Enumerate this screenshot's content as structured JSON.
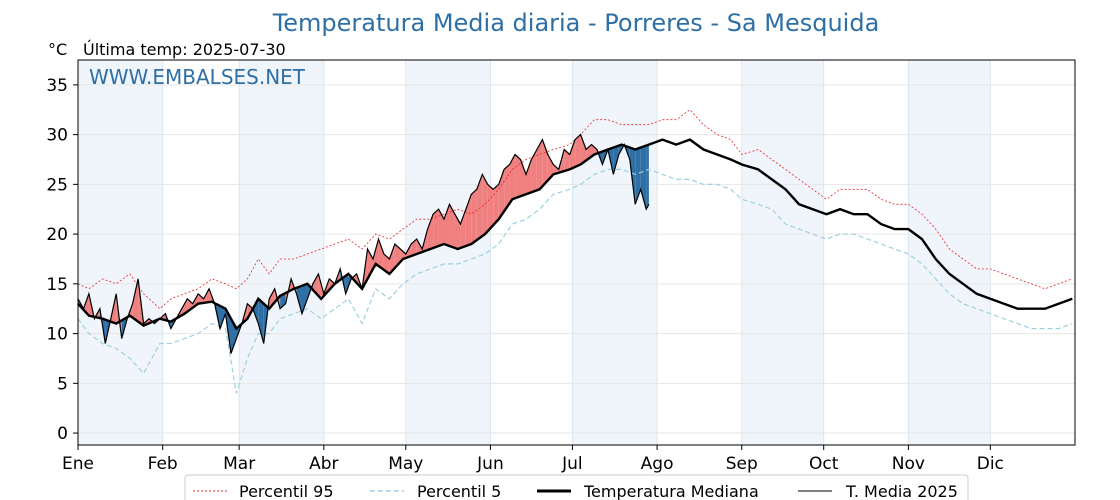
{
  "chart_data": {
    "type": "line",
    "title": "Temperatura Media diaria - Porreres - Sa Mesquida",
    "unit_label": "°C",
    "last_temp_label": "Última temp: 2025-07-30",
    "watermark": "WWW.EMBALSES.NET",
    "ylim": [
      -1.2,
      37.5
    ],
    "yticks": [
      0,
      5,
      10,
      15,
      20,
      25,
      30,
      35
    ],
    "months": [
      "Ene",
      "Feb",
      "Mar",
      "Abr",
      "May",
      "Jun",
      "Jul",
      "Ago",
      "Sep",
      "Oct",
      "Nov",
      "Dic"
    ],
    "month_start_days": [
      1,
      32,
      60,
      91,
      121,
      152,
      182,
      213,
      244,
      274,
      305,
      335
    ],
    "days_in_year": 365,
    "shaded_month_indices": [
      0,
      2,
      4,
      6,
      8,
      10
    ],
    "grid": true,
    "legend_position": "bottom-center",
    "colors": {
      "title": "#2e6fa5",
      "p95": "#e8242a",
      "p5": "#9ed0e0",
      "median": "#000000",
      "mean2025": "#000000",
      "above_fill": "#f08080",
      "below_fill": "#2e6fa5",
      "shade": "#f0f5fb"
    },
    "series": [
      {
        "name": "Percentil 95",
        "key": "p95",
        "style": "dotted-red"
      },
      {
        "name": "Percentil 5",
        "key": "p5",
        "style": "dashed-lightblue"
      },
      {
        "name": "Temperatura Mediana",
        "key": "median",
        "style": "thick-black"
      },
      {
        "name": "T. Media 2025",
        "key": "mean2025",
        "style": "thin-black"
      }
    ],
    "median": {
      "x": [
        1,
        5,
        10,
        15,
        20,
        25,
        31,
        35,
        40,
        45,
        50,
        55,
        59,
        63,
        67,
        71,
        75,
        80,
        85,
        90,
        95,
        100,
        105,
        110,
        115,
        120,
        125,
        130,
        135,
        140,
        145,
        150,
        155,
        160,
        165,
        170,
        175,
        181,
        185,
        190,
        195,
        200,
        205,
        210,
        215,
        220,
        225,
        230,
        235,
        240,
        244,
        250,
        255,
        260,
        265,
        270,
        275,
        280,
        285,
        290,
        295,
        300,
        305,
        310,
        315,
        320,
        325,
        330,
        335,
        340,
        345,
        350,
        355,
        360,
        365
      ],
      "y": [
        13.0,
        11.8,
        11.5,
        11.0,
        11.8,
        10.8,
        11.5,
        11.2,
        12.0,
        13.0,
        13.2,
        12.5,
        10.5,
        11.5,
        13.5,
        12.5,
        13.8,
        14.5,
        15.0,
        13.5,
        15.0,
        16.0,
        14.5,
        17.0,
        16.0,
        17.5,
        18.0,
        18.5,
        19.0,
        18.5,
        19.0,
        20.0,
        21.5,
        23.5,
        24.0,
        24.5,
        26.0,
        26.5,
        27.0,
        28.0,
        28.5,
        29.0,
        28.5,
        29.0,
        29.5,
        29.0,
        29.5,
        28.5,
        28.0,
        27.5,
        27.0,
        26.5,
        25.5,
        24.5,
        23.0,
        22.5,
        22.0,
        22.5,
        22.0,
        22.0,
        21.0,
        20.5,
        20.5,
        19.5,
        17.5,
        16.0,
        15.0,
        14.0,
        13.5,
        13.0,
        12.5,
        12.5,
        12.5,
        13.0,
        13.5
      ]
    },
    "p95": {
      "x": [
        1,
        5,
        10,
        15,
        20,
        25,
        31,
        35,
        40,
        45,
        50,
        55,
        59,
        63,
        67,
        71,
        75,
        80,
        85,
        90,
        95,
        100,
        105,
        110,
        115,
        120,
        125,
        130,
        135,
        140,
        145,
        150,
        155,
        160,
        165,
        170,
        175,
        181,
        185,
        190,
        195,
        200,
        205,
        210,
        215,
        220,
        225,
        230,
        235,
        240,
        244,
        250,
        255,
        260,
        265,
        270,
        275,
        280,
        285,
        290,
        295,
        300,
        305,
        310,
        315,
        320,
        325,
        330,
        335,
        340,
        345,
        350,
        355,
        360,
        365
      ],
      "y": [
        15.0,
        14.5,
        15.5,
        15.0,
        16.0,
        14.0,
        12.5,
        13.5,
        14.0,
        14.5,
        15.5,
        15.0,
        14.5,
        15.5,
        17.5,
        16.0,
        17.5,
        17.5,
        18.0,
        18.5,
        19.0,
        19.5,
        18.5,
        20.0,
        19.5,
        20.5,
        21.5,
        21.5,
        22.0,
        22.5,
        22.0,
        23.0,
        24.5,
        26.5,
        27.5,
        28.0,
        28.5,
        29.0,
        30.0,
        31.5,
        31.5,
        31.0,
        31.0,
        31.0,
        31.5,
        31.5,
        32.5,
        31.0,
        30.0,
        29.5,
        28.0,
        28.5,
        27.5,
        26.5,
        25.5,
        24.5,
        23.5,
        24.5,
        24.5,
        24.5,
        23.5,
        23.0,
        23.0,
        22.0,
        20.5,
        18.5,
        17.5,
        16.5,
        16.5,
        16.0,
        15.5,
        15.0,
        14.5,
        15.0,
        15.5
      ]
    },
    "p5": {
      "x": [
        1,
        5,
        10,
        15,
        20,
        25,
        31,
        35,
        40,
        45,
        50,
        55,
        59,
        63,
        67,
        71,
        75,
        80,
        85,
        90,
        95,
        100,
        105,
        110,
        115,
        120,
        125,
        130,
        135,
        140,
        145,
        150,
        155,
        160,
        165,
        170,
        175,
        181,
        185,
        190,
        195,
        200,
        205,
        210,
        215,
        220,
        225,
        230,
        235,
        240,
        244,
        250,
        255,
        260,
        265,
        270,
        275,
        280,
        285,
        290,
        295,
        300,
        305,
        310,
        315,
        320,
        325,
        330,
        335,
        340,
        345,
        350,
        355,
        360,
        365
      ],
      "y": [
        11.5,
        10.0,
        9.0,
        8.5,
        7.5,
        6.0,
        9.0,
        9.0,
        9.5,
        10.0,
        11.0,
        10.5,
        4.0,
        7.5,
        10.0,
        10.0,
        11.5,
        12.0,
        12.5,
        11.5,
        12.5,
        13.5,
        11.0,
        14.5,
        13.5,
        15.0,
        16.0,
        16.5,
        17.0,
        17.0,
        17.5,
        18.0,
        19.0,
        21.0,
        21.5,
        22.5,
        24.0,
        24.5,
        25.0,
        26.0,
        26.5,
        26.5,
        26.0,
        26.5,
        26.0,
        25.5,
        25.5,
        25.0,
        25.0,
        24.5,
        23.5,
        23.0,
        22.5,
        21.0,
        20.5,
        20.0,
        19.5,
        20.0,
        20.0,
        19.5,
        19.0,
        18.5,
        18.0,
        17.0,
        15.5,
        14.0,
        13.0,
        12.5,
        12.0,
        11.5,
        11.0,
        10.5,
        10.5,
        10.5,
        11.0
      ]
    },
    "mean2025": {
      "x": [
        1,
        3,
        5,
        7,
        9,
        11,
        13,
        15,
        17,
        19,
        21,
        23,
        25,
        27,
        29,
        31,
        33,
        35,
        37,
        39,
        41,
        43,
        45,
        47,
        49,
        51,
        53,
        55,
        57,
        59,
        61,
        63,
        65,
        67,
        69,
        71,
        73,
        75,
        77,
        79,
        81,
        83,
        85,
        87,
        89,
        91,
        93,
        95,
        97,
        99,
        101,
        103,
        105,
        107,
        109,
        111,
        113,
        115,
        117,
        119,
        121,
        123,
        125,
        127,
        129,
        131,
        133,
        135,
        137,
        139,
        141,
        143,
        145,
        147,
        149,
        151,
        153,
        155,
        157,
        159,
        161,
        163,
        165,
        167,
        169,
        171,
        173,
        175,
        177,
        179,
        181,
        183,
        185,
        187,
        189,
        191,
        193,
        195,
        197,
        199,
        201,
        203,
        205,
        207,
        209,
        210
      ],
      "y": [
        13.5,
        12.5,
        14.0,
        11.5,
        12.5,
        9.0,
        11.5,
        14.0,
        9.5,
        11.5,
        13.0,
        15.5,
        11.0,
        11.5,
        11.0,
        11.5,
        12.0,
        10.5,
        11.5,
        12.5,
        13.5,
        13.0,
        14.0,
        13.5,
        14.5,
        13.0,
        10.5,
        12.0,
        8.0,
        9.5,
        11.0,
        13.0,
        12.5,
        11.0,
        9.0,
        13.5,
        14.5,
        12.5,
        13.0,
        15.5,
        14.0,
        12.0,
        13.5,
        15.0,
        16.0,
        14.0,
        15.5,
        15.0,
        16.5,
        14.0,
        15.5,
        16.0,
        14.5,
        18.5,
        17.5,
        19.5,
        18.0,
        17.5,
        19.0,
        18.5,
        18.0,
        19.0,
        19.5,
        18.5,
        20.5,
        22.0,
        22.5,
        21.5,
        23.0,
        22.0,
        21.0,
        22.5,
        24.0,
        24.5,
        26.0,
        25.0,
        24.5,
        25.0,
        26.5,
        27.0,
        28.0,
        27.5,
        26.0,
        27.5,
        28.5,
        29.5,
        28.0,
        27.0,
        26.5,
        28.5,
        28.0,
        29.5,
        30.0,
        28.5,
        29.0,
        28.5,
        27.0,
        28.5,
        26.0,
        28.0,
        29.0,
        27.5,
        23.0,
        24.5,
        22.5,
        23.0
      ]
    }
  }
}
